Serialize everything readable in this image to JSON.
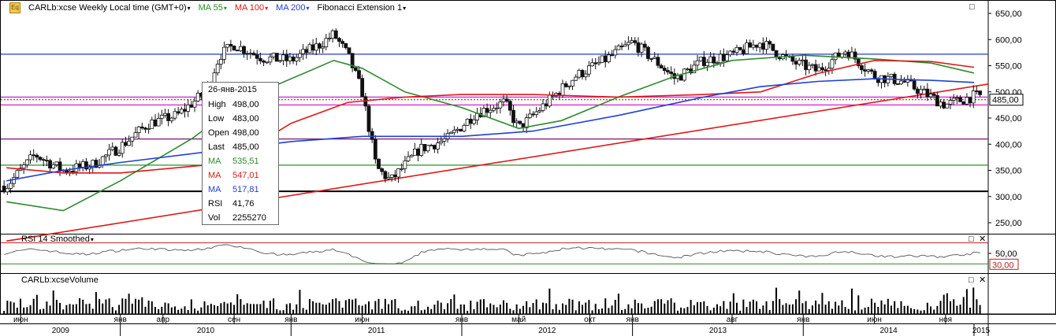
{
  "header": {
    "symbol_label": "CARLb:xcse Weekly Local time (GMT+0)",
    "ma_labels": [
      "MA 55",
      "MA 100",
      "MA 200"
    ],
    "fib_label": "Fibonacci Extension 1",
    "caret": "▾"
  },
  "colors": {
    "up": "#1a1a1a",
    "ma55": "#2e8b2e",
    "ma100": "#e01818",
    "ma200": "#1f3fd6",
    "hline_blue": "#2a3cc6",
    "hline_magenta": "#d21fd2",
    "hline_purple": "#7a1670",
    "hline_green": "#2a8f2a",
    "hline_black": "#000000",
    "trend": "#e01818",
    "last_price_dash": "#c80000"
  },
  "tooltip": {
    "date": "26-янв-2015",
    "rows": [
      {
        "k": "High",
        "v": "498,00",
        "color": "#000000"
      },
      {
        "k": "Low",
        "v": "483,00",
        "color": "#000000"
      },
      {
        "k": "Open",
        "v": "498,00",
        "color": "#000000"
      },
      {
        "k": "Last",
        "v": "485,00",
        "color": "#000000"
      },
      {
        "k": "MA",
        "v": "535,51",
        "color": "#2e8b2e"
      },
      {
        "k": "MA",
        "v": "547,01",
        "color": "#e01818"
      },
      {
        "k": "MA",
        "v": "517,81",
        "color": "#1f3fd6"
      },
      {
        "k": "RSI",
        "v": "41,76",
        "color": "#000000"
      },
      {
        "k": "Vol",
        "v": "2255270",
        "color": "#000000"
      }
    ]
  },
  "rsi_panel": {
    "label": "RSI 14 Smoothed",
    "level_labels": [
      "50,00",
      "30,00"
    ]
  },
  "volume_panel": {
    "label": "CARLb:xcseVolume"
  },
  "controls": {
    "minimize": "□",
    "close": "✕"
  },
  "chart_data": {
    "type": "candlestick",
    "title": "CARLb:xcse Weekly Local time (GMT+0)",
    "price_axis": {
      "ticks": [
        "650,00",
        "600,00",
        "550,00",
        "500,00",
        "450,00",
        "400,00",
        "350,00",
        "300,00",
        "250,00"
      ],
      "range": [
        215,
        665
      ]
    },
    "last_price": {
      "value": 485,
      "label": "485,00"
    },
    "month_labels": [
      "июн",
      "янв",
      "апр",
      "сен",
      "янв",
      "июн",
      "янв",
      "май",
      "окт",
      "янв",
      "авг",
      "янв",
      "июн",
      "ноя"
    ],
    "year_labels": [
      "2009",
      "2010",
      "2011",
      "2012",
      "2013",
      "2014",
      "2015"
    ],
    "horizontal_levels": [
      572,
      490,
      475,
      410,
      360,
      310
    ],
    "trendline": {
      "from": [
        "2009-05",
        "215"
      ],
      "to": [
        "2015-02",
        "515"
      ]
    },
    "price_path": [
      [
        "2009-05",
        320
      ],
      [
        "2009-07",
        380
      ],
      [
        "2009-09",
        350
      ],
      [
        "2009-11",
        360
      ],
      [
        "2010-01",
        395
      ],
      [
        "2010-03",
        440
      ],
      [
        "2010-05",
        455
      ],
      [
        "2010-07",
        500
      ],
      [
        "2010-08",
        570
      ],
      [
        "2010-09",
        590
      ],
      [
        "2010-11",
        565
      ],
      [
        "2011-01",
        560
      ],
      [
        "2011-03",
        590
      ],
      [
        "2011-04",
        610
      ],
      [
        "2011-05",
        570
      ],
      [
        "2011-06",
        500
      ],
      [
        "2011-07",
        355
      ],
      [
        "2011-08",
        330
      ],
      [
        "2011-10",
        390
      ],
      [
        "2011-12",
        410
      ],
      [
        "2012-02",
        460
      ],
      [
        "2012-04",
        480
      ],
      [
        "2012-05",
        430
      ],
      [
        "2012-07",
        480
      ],
      [
        "2012-09",
        530
      ],
      [
        "2012-11",
        560
      ],
      [
        "2013-01",
        595
      ],
      [
        "2013-03",
        550
      ],
      [
        "2013-04",
        525
      ],
      [
        "2013-06",
        560
      ],
      [
        "2013-08",
        570
      ],
      [
        "2013-10",
        595
      ],
      [
        "2013-12",
        560
      ],
      [
        "2014-02",
        540
      ],
      [
        "2014-04",
        580
      ],
      [
        "2014-06",
        530
      ],
      [
        "2014-08",
        520
      ],
      [
        "2014-10",
        490
      ],
      [
        "2014-11",
        475
      ],
      [
        "2015-01",
        492
      ]
    ],
    "ma55": [
      [
        "2009-05",
        290
      ],
      [
        "2009-09",
        273
      ],
      [
        "2010-01",
        330
      ],
      [
        "2010-06",
        410
      ],
      [
        "2010-10",
        490
      ],
      [
        "2011-01",
        525
      ],
      [
        "2011-04",
        560
      ],
      [
        "2011-06",
        545
      ],
      [
        "2011-09",
        500
      ],
      [
        "2012-01",
        470
      ],
      [
        "2012-05",
        430
      ],
      [
        "2012-08",
        445
      ],
      [
        "2012-12",
        490
      ],
      [
        "2013-04",
        530
      ],
      [
        "2013-08",
        560
      ],
      [
        "2014-01",
        570
      ],
      [
        "2014-06",
        563
      ],
      [
        "2014-10",
        555
      ],
      [
        "2015-01",
        536
      ]
    ],
    "ma100": [
      [
        "2009-05",
        355
      ],
      [
        "2009-09",
        345
      ],
      [
        "2010-01",
        345
      ],
      [
        "2010-07",
        360
      ],
      [
        "2010-10",
        390
      ],
      [
        "2011-01",
        440
      ],
      [
        "2011-05",
        480
      ],
      [
        "2011-09",
        490
      ],
      [
        "2012-01",
        495
      ],
      [
        "2012-06",
        495
      ],
      [
        "2012-12",
        490
      ],
      [
        "2013-06",
        495
      ],
      [
        "2013-10",
        500
      ],
      [
        "2014-02",
        535
      ],
      [
        "2014-06",
        560
      ],
      [
        "2014-10",
        558
      ],
      [
        "2015-01",
        547
      ]
    ],
    "ma200": [
      [
        "2009-05",
        330
      ],
      [
        "2009-09",
        350
      ],
      [
        "2010-01",
        365
      ],
      [
        "2010-07",
        385
      ],
      [
        "2010-10",
        395
      ],
      [
        "2011-01",
        405
      ],
      [
        "2011-06",
        415
      ],
      [
        "2011-09",
        415
      ],
      [
        "2012-01",
        415
      ],
      [
        "2012-06",
        425
      ],
      [
        "2012-12",
        455
      ],
      [
        "2013-06",
        490
      ],
      [
        "2013-10",
        510
      ],
      [
        "2014-02",
        520
      ],
      [
        "2014-06",
        525
      ],
      [
        "2014-10",
        522
      ],
      [
        "2015-01",
        518
      ]
    ],
    "rsi": {
      "levels": [
        70,
        50,
        30
      ],
      "range": [
        20,
        80
      ]
    },
    "volume": {
      "note": "weekly volume bars"
    }
  }
}
